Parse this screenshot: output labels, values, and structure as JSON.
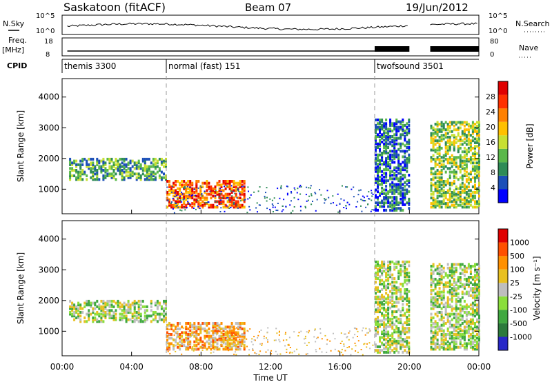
{
  "header": {
    "station": "Saskatoon (fitACF)",
    "beam": "Beam 07",
    "date": "19/Jun/2012"
  },
  "nsky": {
    "label": "N.Sky",
    "right_label": "N.Search",
    "ticks": [
      "10^5",
      "10^0"
    ],
    "right_ticks": [
      "10^5",
      "10^0"
    ]
  },
  "freq": {
    "label_top": "Freq.",
    "label_unit": "[MHz]",
    "ticks": [
      "18",
      "8"
    ],
    "right_label": "Nave",
    "right_ticks": [
      "80",
      "0"
    ]
  },
  "cpid": {
    "label": "CPID",
    "segments": [
      {
        "name": "themis 3300",
        "start": 0,
        "end": 6
      },
      {
        "name": "normal (fast) 151",
        "start": 6,
        "end": 18
      },
      {
        "name": "twofsound 3501",
        "start": 18,
        "end": 24
      }
    ]
  },
  "x_axis": {
    "label": "Time UT",
    "ticks": [
      "00:00",
      "04:00",
      "08:00",
      "12:00",
      "16:00",
      "20:00",
      "00:00"
    ]
  },
  "colors": {
    "power": [
      "#0000ff",
      "#1c4fb8",
      "#2e8b57",
      "#5ab84a",
      "#c8e032",
      "#ffc000",
      "#ff8000",
      "#ff3000",
      "#e00000"
    ],
    "velocity": [
      "#2828c8",
      "#2c7a3c",
      "#40a840",
      "#8ade3c",
      "#bebebe",
      "#e8c020",
      "#ff9000",
      "#ff5000",
      "#e00000"
    ]
  },
  "chart_data": [
    {
      "type": "heatmap",
      "ylabel": "Slant Range [km]",
      "y_ticks": [
        "1000",
        "2000",
        "3000",
        "4000"
      ],
      "ylim": [
        200,
        4600
      ],
      "xlim": [
        0,
        24
      ],
      "colorbar_label": "Power [dB]",
      "colorbar_ticks": [
        "4",
        "8",
        "12",
        "16",
        "20",
        "24",
        "28"
      ],
      "regions": [
        {
          "t0": 0.4,
          "t1": 6.0,
          "r0": 1300,
          "r1": 2000,
          "level": 3
        },
        {
          "t0": 6.0,
          "t1": 10.5,
          "r0": 400,
          "r1": 1300,
          "level": 7
        },
        {
          "t0": 18.0,
          "t1": 20.0,
          "r0": 300,
          "r1": 3300,
          "level": 2
        },
        {
          "t0": 21.2,
          "t1": 24.0,
          "r0": 400,
          "r1": 3200,
          "level": 4
        }
      ]
    },
    {
      "type": "heatmap",
      "ylabel": "Slant Range [km]",
      "y_ticks": [
        "1000",
        "2000",
        "3000",
        "4000"
      ],
      "ylim": [
        200,
        4600
      ],
      "xlim": [
        0,
        24
      ],
      "colorbar_label": "Velocity [m s⁻¹]",
      "colorbar_ticks": [
        "1000",
        "500",
        "100",
        "25",
        "-25",
        "-100",
        "-500",
        "-1000"
      ],
      "regions": [
        {
          "t0": 0.4,
          "t1": 6.0,
          "r0": 1300,
          "r1": 2000,
          "level": 4
        },
        {
          "t0": 6.0,
          "t1": 10.5,
          "r0": 400,
          "r1": 1300,
          "level": 6
        },
        {
          "t0": 18.0,
          "t1": 20.0,
          "r0": 300,
          "r1": 3300,
          "level": 4
        },
        {
          "t0": 21.2,
          "t1": 24.0,
          "r0": 400,
          "r1": 3200,
          "level": 4
        }
      ]
    }
  ]
}
